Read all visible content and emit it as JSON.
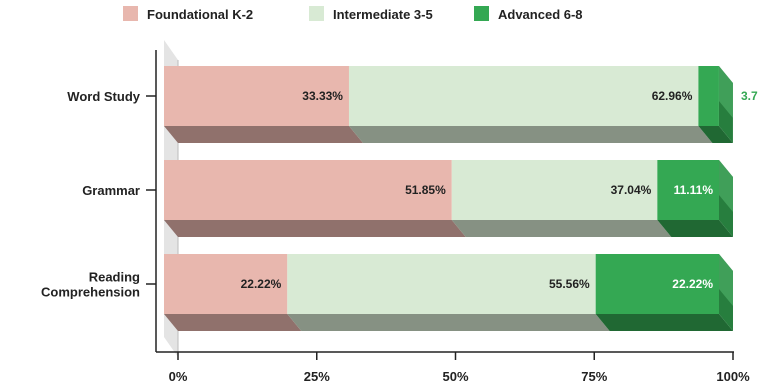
{
  "chart_data": {
    "type": "bar",
    "orientation": "horizontal",
    "stacked": true,
    "percent_stacked": true,
    "style": "3d",
    "categories": [
      "Word Study",
      "Grammar",
      "Reading\nComprehension"
    ],
    "series": [
      {
        "name": "Foundational K-2",
        "values": [
          33.33,
          51.85,
          22.22
        ],
        "labels": [
          "33.33%",
          "51.85%",
          "22.22%"
        ],
        "color": "#e8b7ae"
      },
      {
        "name": "Intermediate 3-5",
        "values": [
          62.96,
          37.04,
          55.56
        ],
        "labels": [
          "62.96%",
          "37.04%",
          "55.56%"
        ],
        "color": "#d8ead4"
      },
      {
        "name": "Advanced 6-8",
        "values": [
          3.7,
          11.11,
          22.22
        ],
        "labels": [
          "3.7",
          "11.11%",
          "22.22%"
        ],
        "color": "#34a853"
      }
    ],
    "x_ticks": [
      "0%",
      "25%",
      "50%",
      "75%",
      "100%"
    ],
    "xlim": [
      0,
      100
    ],
    "legend_position": "top"
  }
}
